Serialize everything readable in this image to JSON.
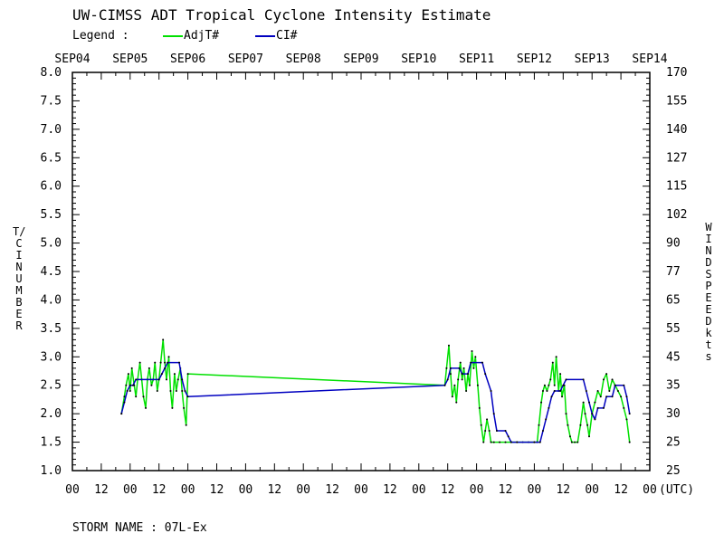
{
  "title": "UW-CIMSS ADT Tropical Cyclone Intensity Estimate",
  "legend": {
    "label": "Legend :",
    "items": [
      {
        "name": "AdjT#",
        "color": "#00e000"
      },
      {
        "name": "CI#",
        "color": "#0000c0"
      }
    ]
  },
  "storm_name_label": "STORM NAME : 07L-Ex",
  "chart_data": {
    "type": "line",
    "ylabel_left": "T/CI NUMBER",
    "ylabel_right": "WIND SPEED kts",
    "xlabel_suffix": "(UTC)",
    "ylim": [
      1.0,
      8.0
    ],
    "xlim_days": [
      0,
      10
    ],
    "left_ticks": [
      "1.0",
      "1.5",
      "2.0",
      "2.5",
      "3.0",
      "3.5",
      "4.0",
      "4.5",
      "5.0",
      "5.5",
      "6.0",
      "6.5",
      "7.0",
      "7.5",
      "8.0"
    ],
    "right_ticks": [
      "25",
      "25",
      "30",
      "35",
      "45",
      "55",
      "65",
      "77",
      "90",
      "102",
      "115",
      "127",
      "140",
      "155",
      "170"
    ],
    "top_dates": [
      "SEP04",
      "SEP05",
      "SEP06",
      "SEP07",
      "SEP08",
      "SEP09",
      "SEP10",
      "SEP11",
      "SEP12",
      "SEP13",
      "SEP14"
    ],
    "bottom_hours": [
      "00",
      "12",
      "00",
      "12",
      "00",
      "12",
      "00",
      "12",
      "00",
      "12",
      "00",
      "12",
      "00",
      "12",
      "00",
      "12",
      "00",
      "12",
      "00",
      "12",
      "00"
    ],
    "series": [
      {
        "name": "AdjT#",
        "color": "#00e000",
        "points": [
          [
            0.85,
            2.0
          ],
          [
            0.9,
            2.3
          ],
          [
            0.93,
            2.5
          ],
          [
            0.97,
            2.7
          ],
          [
            1.0,
            2.4
          ],
          [
            1.03,
            2.8
          ],
          [
            1.07,
            2.5
          ],
          [
            1.1,
            2.3
          ],
          [
            1.13,
            2.6
          ],
          [
            1.17,
            2.9
          ],
          [
            1.2,
            2.6
          ],
          [
            1.23,
            2.3
          ],
          [
            1.27,
            2.1
          ],
          [
            1.3,
            2.6
          ],
          [
            1.33,
            2.8
          ],
          [
            1.37,
            2.5
          ],
          [
            1.4,
            2.6
          ],
          [
            1.43,
            2.9
          ],
          [
            1.47,
            2.4
          ],
          [
            1.5,
            2.6
          ],
          [
            1.53,
            2.9
          ],
          [
            1.57,
            3.3
          ],
          [
            1.6,
            2.9
          ],
          [
            1.63,
            2.6
          ],
          [
            1.67,
            3.0
          ],
          [
            1.7,
            2.4
          ],
          [
            1.73,
            2.1
          ],
          [
            1.77,
            2.7
          ],
          [
            1.8,
            2.4
          ],
          [
            1.83,
            2.6
          ],
          [
            1.87,
            2.8
          ],
          [
            1.9,
            2.4
          ],
          [
            1.93,
            2.1
          ],
          [
            1.97,
            1.8
          ],
          [
            2.0,
            2.7
          ],
          [
            6.45,
            2.5
          ],
          [
            6.48,
            2.8
          ],
          [
            6.52,
            3.2
          ],
          [
            6.55,
            2.7
          ],
          [
            6.58,
            2.3
          ],
          [
            6.62,
            2.5
          ],
          [
            6.65,
            2.2
          ],
          [
            6.68,
            2.6
          ],
          [
            6.72,
            2.9
          ],
          [
            6.75,
            2.6
          ],
          [
            6.78,
            2.8
          ],
          [
            6.82,
            2.4
          ],
          [
            6.85,
            2.7
          ],
          [
            6.88,
            2.5
          ],
          [
            6.92,
            3.1
          ],
          [
            6.95,
            2.8
          ],
          [
            6.98,
            3.0
          ],
          [
            7.02,
            2.5
          ],
          [
            7.05,
            2.1
          ],
          [
            7.08,
            1.8
          ],
          [
            7.12,
            1.5
          ],
          [
            7.15,
            1.7
          ],
          [
            7.18,
            1.9
          ],
          [
            7.22,
            1.7
          ],
          [
            7.25,
            1.5
          ],
          [
            7.3,
            1.5
          ],
          [
            7.4,
            1.5
          ],
          [
            7.5,
            1.5
          ],
          [
            7.6,
            1.5
          ],
          [
            7.7,
            1.5
          ],
          [
            7.8,
            1.5
          ],
          [
            7.9,
            1.5
          ],
          [
            8.0,
            1.5
          ],
          [
            8.05,
            1.5
          ],
          [
            8.08,
            1.8
          ],
          [
            8.12,
            2.2
          ],
          [
            8.15,
            2.4
          ],
          [
            8.18,
            2.5
          ],
          [
            8.22,
            2.4
          ],
          [
            8.25,
            2.5
          ],
          [
            8.28,
            2.6
          ],
          [
            8.32,
            2.9
          ],
          [
            8.35,
            2.5
          ],
          [
            8.38,
            3.0
          ],
          [
            8.42,
            2.4
          ],
          [
            8.45,
            2.7
          ],
          [
            8.48,
            2.3
          ],
          [
            8.52,
            2.5
          ],
          [
            8.55,
            2.0
          ],
          [
            8.58,
            1.8
          ],
          [
            8.62,
            1.6
          ],
          [
            8.65,
            1.5
          ],
          [
            8.7,
            1.5
          ],
          [
            8.75,
            1.5
          ],
          [
            8.8,
            1.8
          ],
          [
            8.85,
            2.2
          ],
          [
            8.88,
            2.0
          ],
          [
            8.92,
            1.8
          ],
          [
            8.95,
            1.6
          ],
          [
            9.0,
            2.0
          ],
          [
            9.05,
            2.2
          ],
          [
            9.1,
            2.4
          ],
          [
            9.15,
            2.3
          ],
          [
            9.2,
            2.6
          ],
          [
            9.25,
            2.7
          ],
          [
            9.3,
            2.4
          ],
          [
            9.35,
            2.6
          ],
          [
            9.4,
            2.5
          ],
          [
            9.45,
            2.4
          ],
          [
            9.5,
            2.3
          ],
          [
            9.55,
            2.1
          ],
          [
            9.6,
            1.9
          ],
          [
            9.65,
            1.5
          ]
        ]
      },
      {
        "name": "CI#",
        "color": "#0000c0",
        "points": [
          [
            0.85,
            2.0
          ],
          [
            0.9,
            2.2
          ],
          [
            0.95,
            2.4
          ],
          [
            1.0,
            2.5
          ],
          [
            1.05,
            2.5
          ],
          [
            1.1,
            2.6
          ],
          [
            1.5,
            2.6
          ],
          [
            1.55,
            2.7
          ],
          [
            1.6,
            2.8
          ],
          [
            1.65,
            2.9
          ],
          [
            1.85,
            2.9
          ],
          [
            1.9,
            2.6
          ],
          [
            1.95,
            2.4
          ],
          [
            2.0,
            2.3
          ],
          [
            6.45,
            2.5
          ],
          [
            6.5,
            2.6
          ],
          [
            6.55,
            2.8
          ],
          [
            6.7,
            2.8
          ],
          [
            6.75,
            2.7
          ],
          [
            6.85,
            2.7
          ],
          [
            6.9,
            2.9
          ],
          [
            7.1,
            2.9
          ],
          [
            7.15,
            2.7
          ],
          [
            7.25,
            2.4
          ],
          [
            7.3,
            2.0
          ],
          [
            7.35,
            1.7
          ],
          [
            7.5,
            1.7
          ],
          [
            7.55,
            1.6
          ],
          [
            7.6,
            1.5
          ],
          [
            7.7,
            1.5
          ],
          [
            8.0,
            1.5
          ],
          [
            8.1,
            1.5
          ],
          [
            8.15,
            1.7
          ],
          [
            8.2,
            1.9
          ],
          [
            8.25,
            2.1
          ],
          [
            8.3,
            2.3
          ],
          [
            8.35,
            2.4
          ],
          [
            8.45,
            2.4
          ],
          [
            8.5,
            2.5
          ],
          [
            8.55,
            2.6
          ],
          [
            8.85,
            2.6
          ],
          [
            8.9,
            2.4
          ],
          [
            8.95,
            2.2
          ],
          [
            9.0,
            2.0
          ],
          [
            9.05,
            1.9
          ],
          [
            9.1,
            2.1
          ],
          [
            9.2,
            2.1
          ],
          [
            9.25,
            2.3
          ],
          [
            9.35,
            2.3
          ],
          [
            9.4,
            2.5
          ],
          [
            9.55,
            2.5
          ],
          [
            9.6,
            2.3
          ],
          [
            9.65,
            2.0
          ]
        ]
      }
    ]
  }
}
